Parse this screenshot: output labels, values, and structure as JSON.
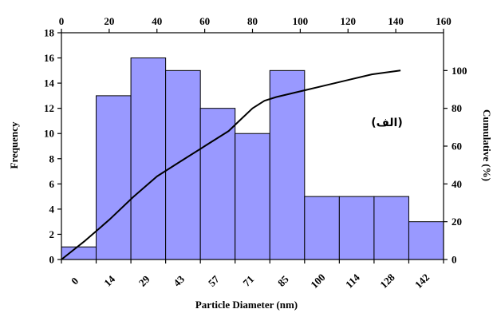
{
  "chart_data": {
    "type": "bar",
    "categories": [
      "0",
      "14",
      "29",
      "43",
      "57",
      "71",
      "85",
      "100",
      "114",
      "128",
      "142"
    ],
    "values": [
      1,
      13,
      16,
      15,
      12,
      10,
      15,
      5,
      5,
      5,
      3
    ],
    "bar_color": "#9999ff",
    "xlabel": "Particle Diameter (nm)",
    "ylabel": "Frequency",
    "ylim": [
      0,
      18
    ],
    "yticks": [
      "0",
      "2",
      "4",
      "6",
      "8",
      "10",
      "12",
      "14",
      "16",
      "18"
    ],
    "top_axis": {
      "ticks": [
        "0",
        "20",
        "40",
        "60",
        "80",
        "100",
        "120",
        "140",
        "160"
      ],
      "range": [
        0,
        160
      ]
    },
    "right_axis": {
      "label": "Cumulative (%)",
      "ticks": [
        "0",
        "20",
        "40",
        "60",
        "80",
        "100"
      ],
      "range": [
        0,
        120
      ]
    },
    "cumulative_line": {
      "x": [
        0,
        10,
        20,
        30,
        40,
        50,
        60,
        70,
        75,
        80,
        85,
        90,
        100,
        110,
        120,
        130,
        142
      ],
      "y": [
        0,
        10,
        21,
        33,
        44,
        52,
        60,
        68,
        74,
        80,
        84,
        86,
        89,
        92,
        95,
        98,
        100
      ]
    },
    "annotation": "(الف)",
    "grid": false,
    "legend": "none"
  }
}
